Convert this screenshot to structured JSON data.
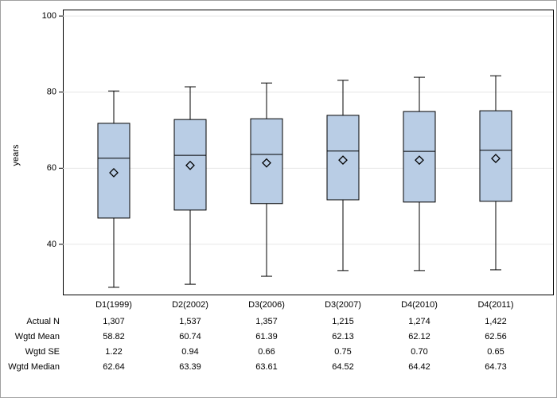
{
  "chart_data": {
    "type": "box",
    "y_label": "years",
    "categories": [
      "D1(1999)",
      "D2(2002)",
      "D3(2006)",
      "D3(2007)",
      "D4(2010)",
      "D4(2011)"
    ],
    "whisker_low": [
      28.7,
      29.5,
      31.6,
      33.1,
      33.1,
      33.3
    ],
    "q1": [
      46.9,
      49.0,
      50.7,
      51.7,
      51.1,
      51.3
    ],
    "q3": [
      71.8,
      72.8,
      73.0,
      73.9,
      74.9,
      75.1
    ],
    "whisker_high": [
      80.3,
      81.4,
      82.4,
      83.1,
      83.9,
      84.3
    ],
    "box_color": "#b9cde5",
    "ylim": [
      26.8,
      101.7
    ],
    "yticks": [
      40,
      60,
      80,
      100
    ],
    "grid": true,
    "table": [
      {
        "label": "Actual N",
        "values": [
          1307,
          1537,
          1357,
          1215,
          1274,
          1422
        ],
        "value_labels": [
          "1,307",
          "1,537",
          "1,357",
          "1,215",
          "1,274",
          "1,422"
        ]
      },
      {
        "label": "Wgtd Mean",
        "values": [
          58.82,
          60.74,
          61.39,
          62.13,
          62.12,
          62.56
        ]
      },
      {
        "label": "Wgtd SE",
        "values": [
          1.22,
          0.94,
          0.66,
          0.75,
          0.7,
          0.65
        ],
        "value_labels": [
          "1.22",
          "0.94",
          "0.66",
          "0.75",
          "0.70",
          "0.65"
        ]
      },
      {
        "label": "Wgtd Median",
        "values": [
          62.64,
          63.39,
          63.61,
          64.52,
          64.42,
          64.73
        ]
      }
    ]
  }
}
